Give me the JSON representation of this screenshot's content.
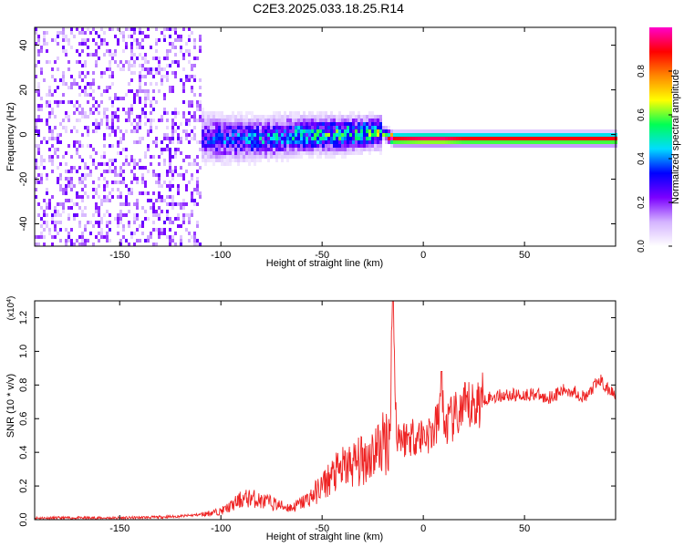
{
  "title": "C2E3.2025.033.18.25.R14",
  "colors": {
    "snr_line": "#ee2222",
    "axis": "#000000"
  },
  "chart_data": [
    {
      "type": "heatmap",
      "xlabel": "Height of straight line (km)",
      "ylabel": "Frequency (Hz)",
      "xlim": [
        -192,
        95
      ],
      "ylim": [
        -50,
        48
      ],
      "x_ticks": [
        -150,
        -100,
        -50,
        0,
        50
      ],
      "y_ticks": [
        -40,
        -20,
        0,
        20,
        40
      ],
      "colorbar": {
        "label": "Normalized spectral amplitude",
        "range": [
          0,
          1
        ],
        "ticks": [
          "0.0",
          "0.2",
          "0.4",
          "0.6",
          "0.8"
        ],
        "tick_values": [
          0.0,
          0.2,
          0.4,
          0.6,
          0.8
        ],
        "colormap": [
          "#ffffff",
          "#d4b3ff",
          "#7b00ff",
          "#0000ff",
          "#00dcff",
          "#00ff55",
          "#ffff00",
          "#ff8800",
          "#ff0000",
          "#ff00cc"
        ]
      },
      "ridge": {
        "x": [
          -190,
          -150,
          -120,
          -100,
          -80,
          -60,
          -40,
          -20,
          -15,
          0,
          10,
          20,
          50,
          95
        ],
        "freq": [
          0,
          0,
          0,
          -2,
          -2,
          0,
          0,
          1,
          -2,
          -2,
          -2,
          -2,
          -2,
          -2
        ],
        "amplitude": [
          0.15,
          0.15,
          0.2,
          0.3,
          0.35,
          0.4,
          0.45,
          0.5,
          0.9,
          0.95,
          0.95,
          0.9,
          0.9,
          0.9
        ]
      }
    },
    {
      "type": "line",
      "xlabel": "Height of straight line (km)",
      "ylabel": "SNR (10 * v/v)",
      "y_multiplier": "(x10",
      "y_multiplier_exp": "4",
      "y_multiplier_close": ")",
      "xlim": [
        -192,
        95
      ],
      "ylim": [
        0,
        1.3
      ],
      "x_ticks": [
        -150,
        -100,
        -50,
        0,
        50
      ],
      "y_ticks": [
        "0.0",
        "0.2",
        "0.4",
        "0.6",
        "0.8",
        "1.0",
        "1.2"
      ],
      "y_tick_values": [
        0.0,
        0.2,
        0.4,
        0.6,
        0.8,
        1.0,
        1.2
      ],
      "series": [
        {
          "x": [
            -192,
            -170,
            -150,
            -130,
            -120,
            -110,
            -100,
            -95,
            -90,
            -85,
            -80,
            -75,
            -70,
            -65,
            -60,
            -55,
            -50,
            -45,
            -40,
            -35,
            -30,
            -25,
            -20,
            -17,
            -16,
            -15,
            -14,
            -13,
            -10,
            -5,
            0,
            5,
            8,
            9,
            10,
            15,
            20,
            25,
            30,
            35,
            40,
            45,
            50,
            55,
            60,
            65,
            70,
            75,
            80,
            85,
            88,
            90,
            95
          ],
          "y": [
            0.01,
            0.01,
            0.01,
            0.015,
            0.02,
            0.03,
            0.05,
            0.08,
            0.12,
            0.13,
            0.11,
            0.1,
            0.08,
            0.07,
            0.1,
            0.14,
            0.2,
            0.26,
            0.3,
            0.33,
            0.35,
            0.4,
            0.45,
            0.5,
            0.7,
            1.3,
            0.75,
            0.52,
            0.48,
            0.5,
            0.5,
            0.52,
            0.6,
            0.88,
            0.55,
            0.6,
            0.65,
            0.68,
            0.72,
            0.73,
            0.74,
            0.74,
            0.74,
            0.75,
            0.72,
            0.74,
            0.77,
            0.76,
            0.72,
            0.8,
            0.83,
            0.78,
            0.75
          ]
        }
      ]
    }
  ]
}
